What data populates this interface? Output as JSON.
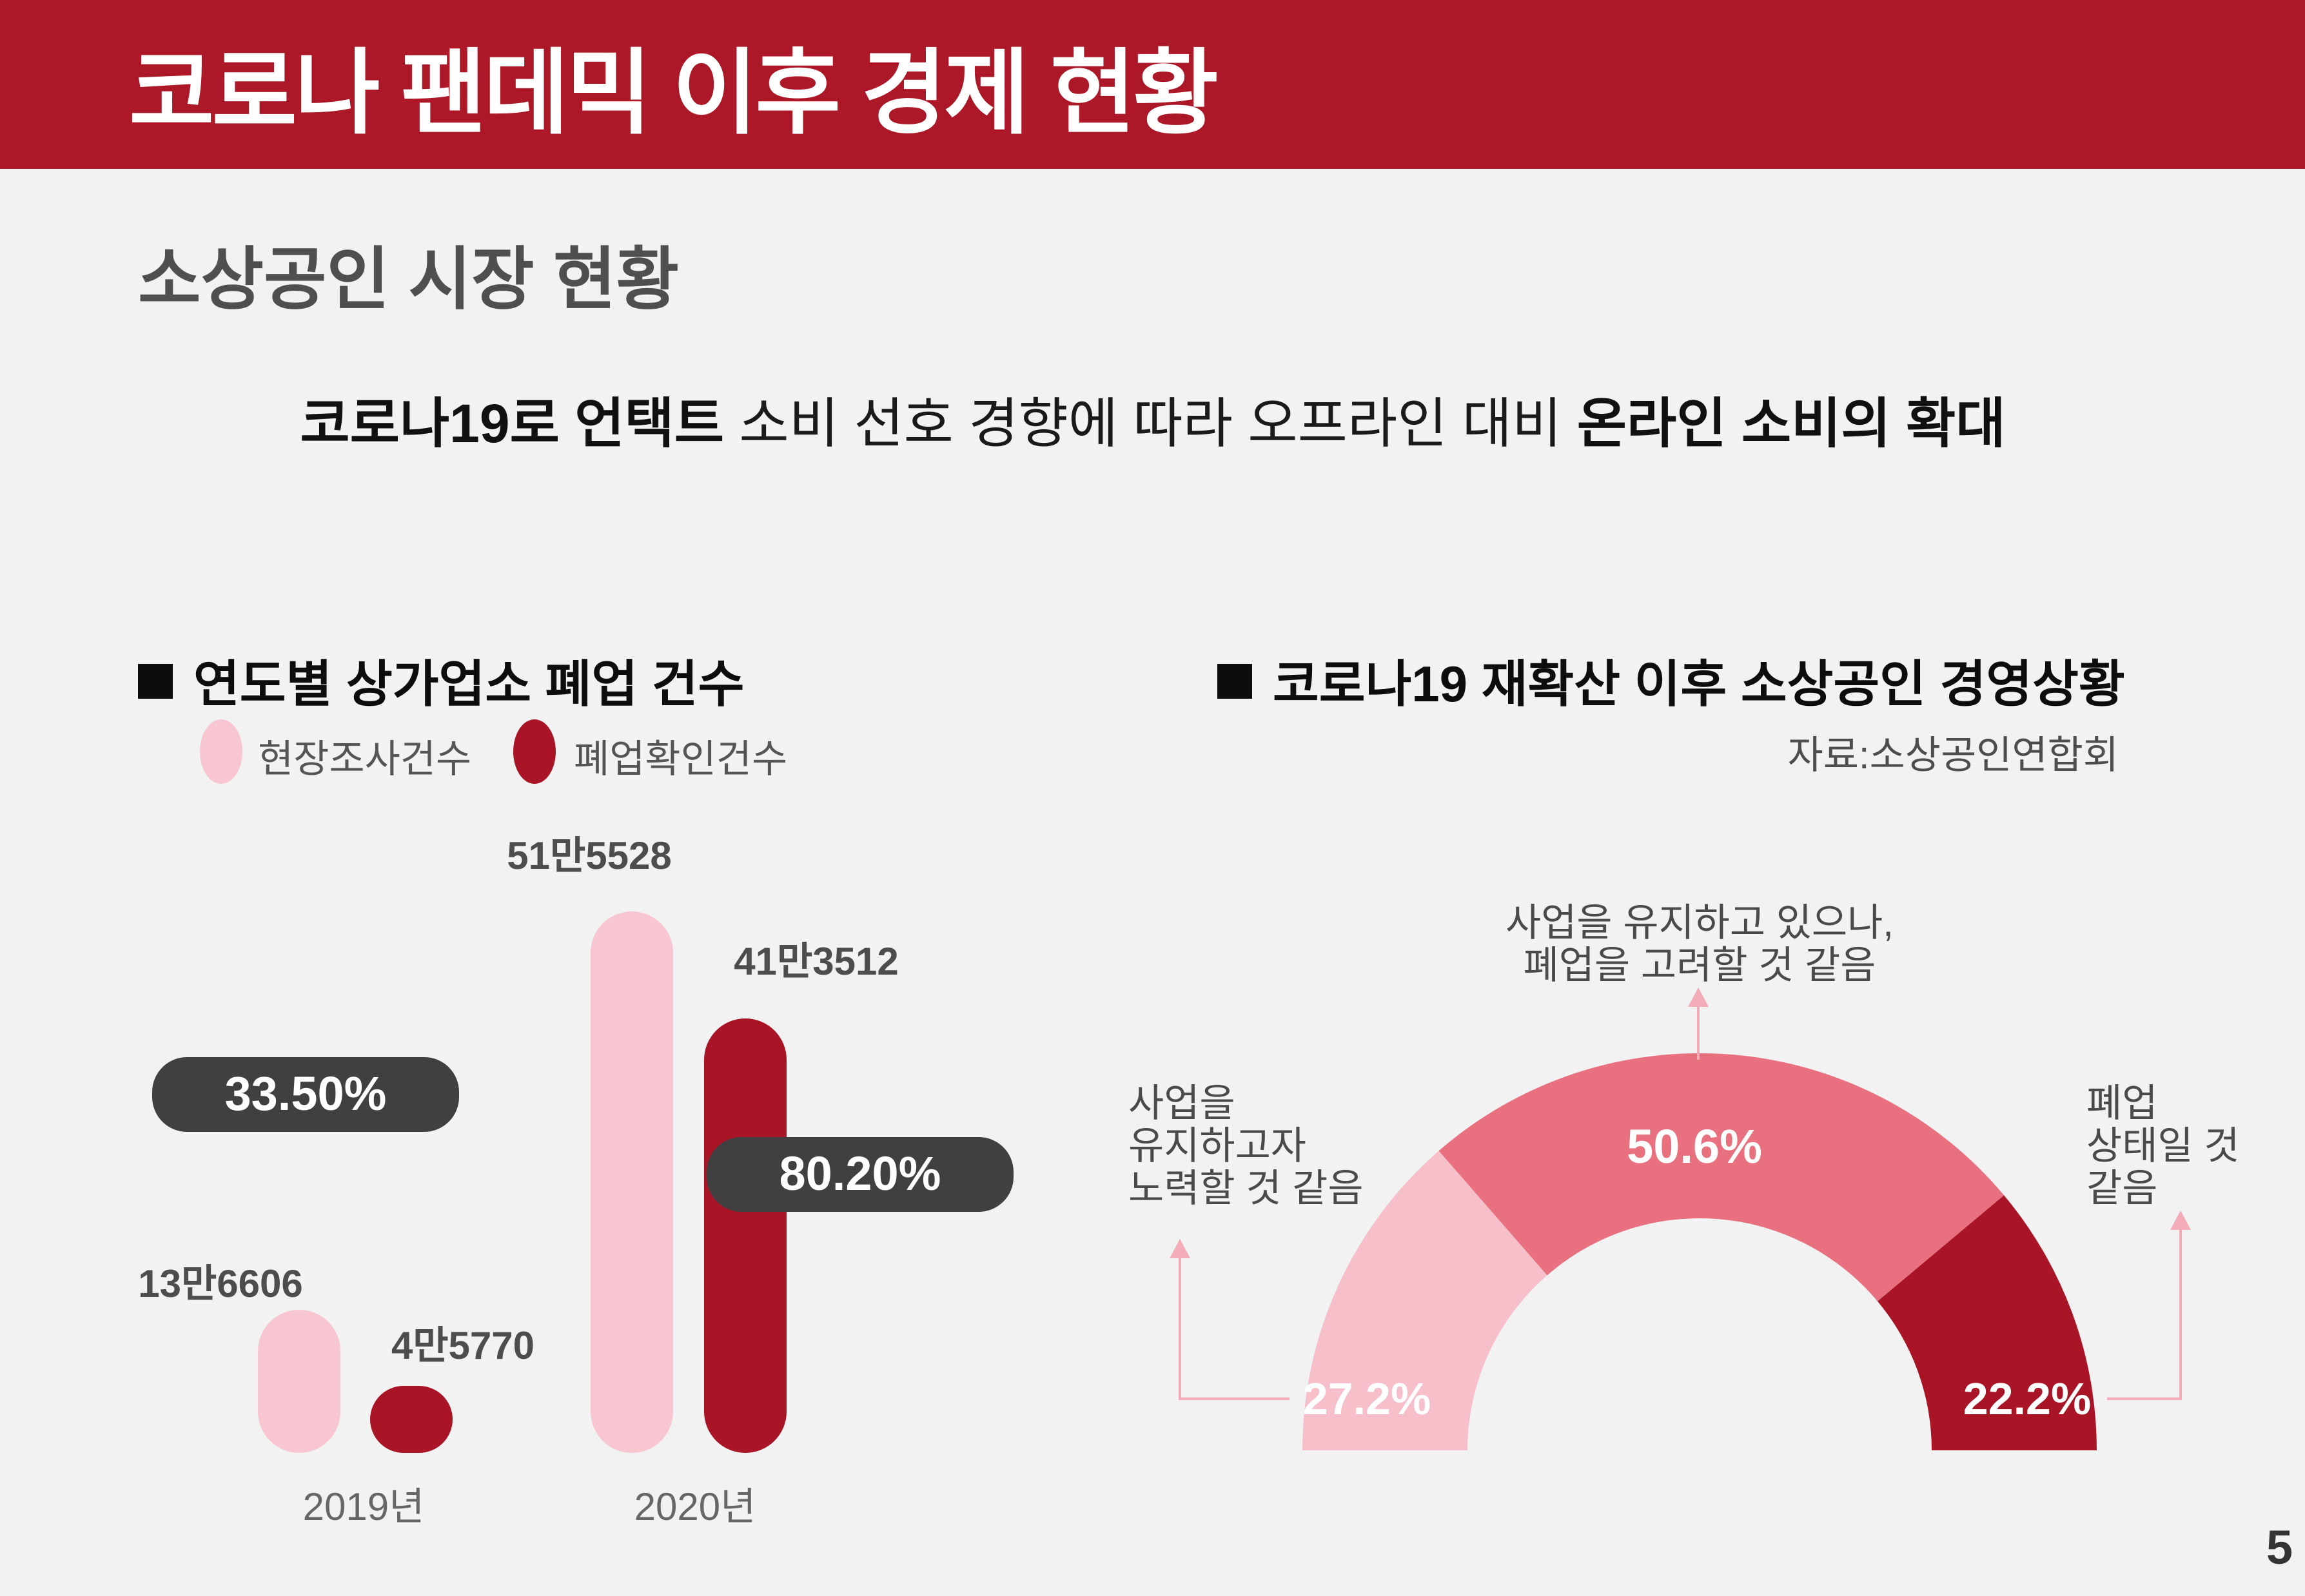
{
  "banner": {
    "title": "코로나 팬데믹 이후 경제 현황"
  },
  "section": {
    "heading": "소상공인 시장 현황"
  },
  "lead": {
    "bold1": "코로나19로 언택트",
    "middle": " 소비 선호 경향에 따라 오프라인 대비 ",
    "bold2": "온라인 소비의 확대"
  },
  "page_number": "5",
  "colors": {
    "background": "#F2F2F2",
    "banner_red": "#AC1828",
    "dark_red": "#A91527",
    "bar_pink": "#F7C6D0",
    "donut_light_pink": "#F6BFC9",
    "donut_rose": "#E8707F",
    "badge_bg": "#404040",
    "connector_pink": "#F4ACB9"
  },
  "chart_data": [
    {
      "type": "bar",
      "title": "연도별 상가업소 폐업 건수",
      "categories": [
        "2019년",
        "2020년"
      ],
      "series": [
        {
          "name": "현장조사건수",
          "color": "#F7C6D0",
          "values": [
            136606,
            515528
          ],
          "value_labels": [
            "13만6606",
            "51만5528"
          ]
        },
        {
          "name": "폐업확인건수",
          "color": "#A91527",
          "values": [
            45770,
            413512
          ],
          "value_labels": [
            "4만5770",
            "41만3512"
          ]
        }
      ],
      "badges": [
        "33.50%",
        "80.20%"
      ],
      "ylim": [
        0,
        515528
      ],
      "legend_position": "top-left",
      "grid": false
    },
    {
      "type": "pie",
      "subtype": "half-donut-gauge",
      "title": "코로나19 재확산 이후 소상공인 경영상황",
      "source": "자료:소상공인연합회",
      "span_degrees": 180,
      "slices": [
        {
          "label": "사업을 유지하고자 노력할 것 같음",
          "value": 27.2,
          "display": "27.2%",
          "color": "#F6BFC9"
        },
        {
          "label": "사업을 유지하고 있으나, 폐업을 고려할 것 같음",
          "value": 50.6,
          "display": "50.6%",
          "color": "#E8707F"
        },
        {
          "label": "폐업 상태일 것 같음",
          "value": 22.2,
          "display": "22.2%",
          "color": "#A91527"
        }
      ],
      "callouts": {
        "top_lines": [
          "사업을 유지하고 있으나,",
          "폐업을 고려할 것 같음"
        ],
        "left_lines": [
          "사업을",
          "유지하고자",
          "노력할 것 같음"
        ],
        "right_lines": [
          "폐업",
          "상태일 것",
          "같음"
        ]
      }
    }
  ]
}
